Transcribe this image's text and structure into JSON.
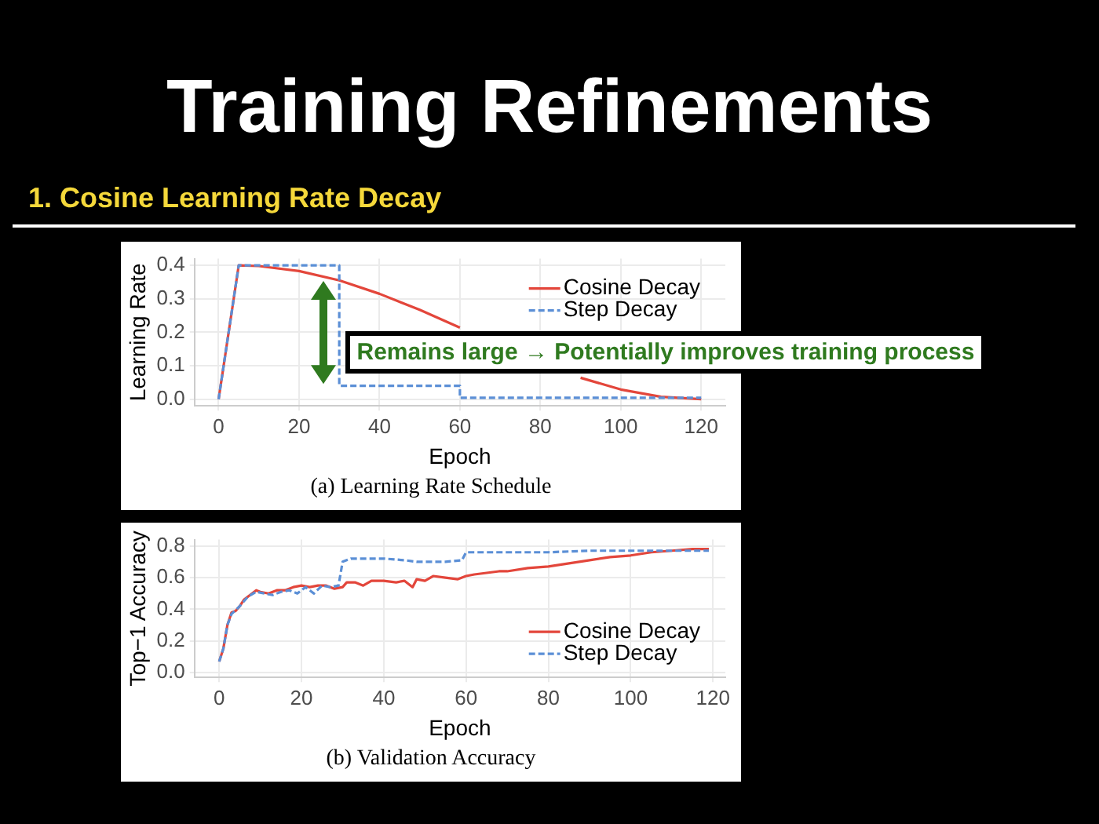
{
  "chart_data": [
    {
      "type": "line",
      "title": "Training Refinements",
      "subtitle": "1. Cosine Learning Rate Decay",
      "xlabel": "Epoch",
      "ylabel": "Learning Rate",
      "xlim": [
        -6,
        126
      ],
      "xticks": [
        0,
        20,
        40,
        60,
        80,
        100,
        120
      ],
      "ylim": [
        -0.02,
        0.42
      ],
      "yticks": [
        {
          "value": 0,
          "label": "0.0"
        },
        0.1,
        0.2,
        0.3,
        0.4
      ],
      "grid": true,
      "legend": "top right",
      "marker": "none",
      "series": [
        {
          "name": "Cosine Decay",
          "color": "#e3463b",
          "line_style": "solid",
          "x": [
            0,
            5,
            10,
            20,
            30,
            40,
            50,
            60,
            70,
            80,
            90,
            100,
            110,
            120
          ],
          "values": [
            0,
            0.4,
            0.398,
            0.383,
            0.355,
            0.315,
            0.267,
            0.214,
            null,
            null,
            0.064,
            0.029,
            0.007,
            0
          ]
        },
        {
          "name": "Step Decay",
          "color": "#5b8fd6",
          "line_style": "dashed",
          "x": [
            0,
            5,
            30,
            30,
            60,
            60,
            120
          ],
          "values": [
            0,
            0.4,
            0.4,
            0.04,
            0.04,
            0.004,
            0.004
          ]
        }
      ],
      "annotations": [
        "Remains large → Potentially improves training process",
        "(a) Learning Rate Schedule"
      ]
    },
    {
      "type": "line",
      "xlabel": "Epoch",
      "ylabel": "Top−1 Accuracy",
      "xlim": [
        -6,
        123
      ],
      "xticks": [
        0,
        20,
        40,
        60,
        80,
        100,
        120
      ],
      "ylim": [
        -0.03,
        0.84
      ],
      "yticks": [
        {
          "value": 0,
          "label": "0.0"
        },
        0.2,
        0.4,
        0.6,
        0.8
      ],
      "grid": true,
      "legend": "bottom right",
      "marker": "none",
      "series": [
        {
          "name": "Cosine Decay",
          "color": "#e3463b",
          "line_style": "solid",
          "x": [
            0,
            1,
            2,
            3,
            4,
            5,
            6,
            8,
            9,
            10,
            12,
            14,
            16,
            18,
            20,
            22,
            24,
            26,
            28,
            30,
            31,
            33,
            35,
            37,
            40,
            43,
            45,
            47,
            48,
            50,
            52,
            55,
            58,
            60,
            62,
            65,
            68,
            70,
            75,
            80,
            85,
            90,
            95,
            100,
            105,
            110,
            115,
            119
          ],
          "values": [
            0.07,
            0.15,
            0.3,
            0.38,
            0.39,
            0.42,
            0.46,
            0.5,
            0.52,
            0.51,
            0.5,
            0.52,
            0.52,
            0.54,
            0.55,
            0.54,
            0.55,
            0.55,
            0.53,
            0.54,
            0.57,
            0.57,
            0.55,
            0.58,
            0.58,
            0.57,
            0.58,
            0.54,
            0.59,
            0.58,
            0.61,
            0.6,
            0.59,
            0.61,
            0.62,
            0.63,
            0.64,
            0.64,
            0.66,
            0.67,
            0.69,
            0.71,
            0.73,
            0.74,
            0.76,
            0.77,
            0.78,
            0.78
          ]
        },
        {
          "name": "Step Decay",
          "color": "#5b8fd6",
          "line_style": "dashed",
          "x": [
            0,
            1,
            2,
            3,
            5,
            7,
            9,
            11,
            13,
            15,
            17,
            19,
            21,
            23,
            25,
            27,
            29,
            30,
            32,
            35,
            40,
            45,
            48,
            52,
            55,
            59,
            60,
            65,
            70,
            80,
            90,
            100,
            110,
            119
          ],
          "values": [
            0.07,
            0.15,
            0.3,
            0.37,
            0.42,
            0.48,
            0.51,
            0.5,
            0.49,
            0.51,
            0.52,
            0.5,
            0.54,
            0.5,
            0.55,
            0.54,
            0.55,
            0.7,
            0.72,
            0.72,
            0.72,
            0.71,
            0.7,
            0.7,
            0.7,
            0.71,
            0.76,
            0.76,
            0.76,
            0.76,
            0.77,
            0.77,
            0.77,
            0.77
          ]
        }
      ],
      "annotations": [
        "(b) Validation Accuracy"
      ]
    }
  ]
}
